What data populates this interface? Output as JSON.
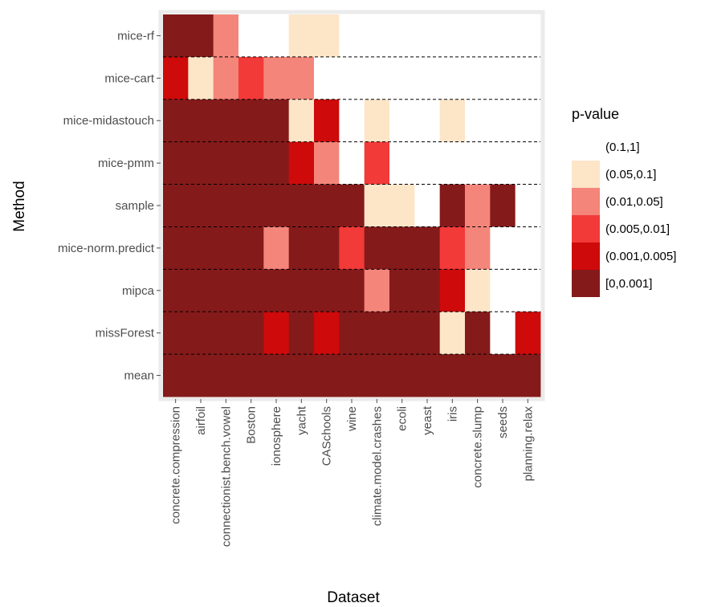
{
  "chart_data": {
    "type": "heatmap",
    "xlabel": "Dataset",
    "ylabel": "Method",
    "x": [
      "concrete.compression",
      "airfoil",
      "connectionist.bench.vowel",
      "Boston",
      "ionosphere",
      "yacht",
      "CASchools",
      "wine",
      "climate.model.crashes",
      "ecoli",
      "yeast",
      "iris",
      "concrete.slump",
      "seeds",
      "planning.relax"
    ],
    "y": [
      "mice-rf",
      "mice-cart",
      "mice-midastouch",
      "mice-pmm",
      "sample",
      "mice-norm.predict",
      "mipca",
      "missForest",
      "mean"
    ],
    "legend_title": "p-value",
    "legend_position": "right",
    "bins": [
      {
        "label": "(0.1,1]",
        "color": "#FFFFFF"
      },
      {
        "label": "(0.05,0.1]",
        "color": "#FDE5C8"
      },
      {
        "label": "(0.01,0.05]",
        "color": "#F4857A"
      },
      {
        "label": "(0.005,0.01]",
        "color": "#F23A39"
      },
      {
        "label": "(0.001,0.005]",
        "color": "#CE0A0A"
      },
      {
        "label": "[0,0.001]",
        "color": "#851A1A"
      }
    ],
    "values": [
      [
        5,
        5,
        2,
        0,
        0,
        1,
        1,
        0,
        0,
        0,
        0,
        0,
        0,
        0,
        0
      ],
      [
        4,
        1,
        2,
        3,
        2,
        2,
        0,
        0,
        0,
        0,
        0,
        0,
        0,
        0,
        0
      ],
      [
        5,
        5,
        5,
        5,
        5,
        1,
        4,
        0,
        1,
        0,
        0,
        1,
        0,
        0,
        0
      ],
      [
        5,
        5,
        5,
        5,
        5,
        4,
        2,
        0,
        3,
        0,
        0,
        0,
        0,
        0,
        0
      ],
      [
        5,
        5,
        5,
        5,
        5,
        5,
        5,
        5,
        1,
        1,
        0,
        5,
        2,
        5,
        0
      ],
      [
        5,
        5,
        5,
        5,
        2,
        5,
        5,
        3,
        5,
        5,
        5,
        3,
        2,
        0,
        0
      ],
      [
        5,
        5,
        5,
        5,
        5,
        5,
        5,
        5,
        2,
        5,
        5,
        4,
        1,
        0,
        0
      ],
      [
        5,
        5,
        5,
        5,
        4,
        5,
        4,
        5,
        5,
        5,
        5,
        1,
        5,
        0,
        4
      ],
      [
        5,
        5,
        5,
        5,
        5,
        5,
        5,
        5,
        5,
        5,
        5,
        5,
        5,
        5,
        5
      ]
    ],
    "value_encoding": "index into bins",
    "row_separators": "dashed",
    "grid": false
  }
}
